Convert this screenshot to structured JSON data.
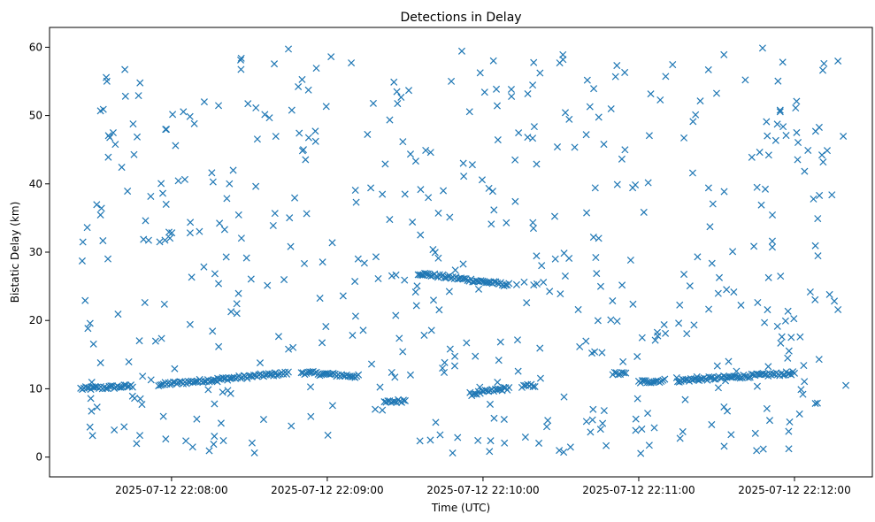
{
  "chart_data": {
    "type": "scatter",
    "title": "Detections in Delay",
    "xlabel": "Time (UTC)",
    "ylabel": "Bistatic Delay (km)",
    "x_ticks": [
      "2025-07-12 22:08:00",
      "2025-07-12 22:09:00",
      "2025-07-12 22:10:00",
      "2025-07-12 22:11:00",
      "2025-07-12 22:12:00"
    ],
    "y_ticks": [
      0,
      10,
      20,
      30,
      40,
      50,
      60
    ],
    "xlim": [
      "2025-07-12 22:07:13",
      "2025-07-12 22:12:30"
    ],
    "ylim": [
      -2.9,
      62.9
    ],
    "marker": "x",
    "color": "#1f77b4",
    "tracks": [
      {
        "t_start": "2025-07-12 22:07:25",
        "t_end": "2025-07-12 22:07:45",
        "delay_start": 10.0,
        "delay_end": 10.4
      },
      {
        "t_start": "2025-07-12 22:07:55",
        "t_end": "2025-07-12 22:08:45",
        "delay_start": 10.6,
        "delay_end": 12.3
      },
      {
        "t_start": "2025-07-12 22:08:50",
        "t_end": "2025-07-12 22:09:12",
        "delay_start": 12.4,
        "delay_end": 11.8
      },
      {
        "t_start": "2025-07-12 22:09:22",
        "t_end": "2025-07-12 22:09:30",
        "delay_start": 8.0,
        "delay_end": 8.3
      },
      {
        "t_start": "2025-07-12 22:09:35",
        "t_end": "2025-07-12 22:10:10",
        "delay_start": 26.9,
        "delay_end": 25.2
      },
      {
        "t_start": "2025-07-12 22:09:55",
        "t_end": "2025-07-12 22:10:10",
        "delay_start": 9.2,
        "delay_end": 10.1
      },
      {
        "t_start": "2025-07-12 22:10:15",
        "t_end": "2025-07-12 22:10:20",
        "delay_start": 10.3,
        "delay_end": 10.5
      },
      {
        "t_start": "2025-07-12 22:10:50",
        "t_end": "2025-07-12 22:10:55",
        "delay_start": 12.2,
        "delay_end": 12.2
      },
      {
        "t_start": "2025-07-12 22:11:00",
        "t_end": "2025-07-12 22:11:10",
        "delay_start": 11.0,
        "delay_end": 11.2
      },
      {
        "t_start": "2025-07-12 22:11:15",
        "t_end": "2025-07-12 22:12:00",
        "delay_start": 11.2,
        "delay_end": 12.3
      }
    ],
    "clutter": {
      "count": 520,
      "delay_range": [
        0.5,
        60
      ],
      "t_range": [
        "2025-07-12 22:07:25",
        "2025-07-12 22:12:20"
      ]
    }
  }
}
